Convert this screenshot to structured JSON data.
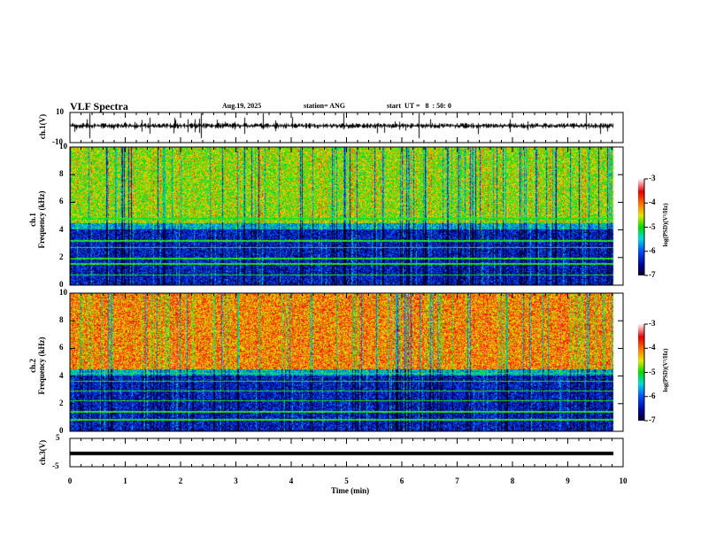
{
  "header": {
    "title": "VLF Spectra",
    "date": "Aug.19, 2025",
    "station": "station= ANG",
    "start": "start  UT =   8  : 50: 0"
  },
  "chart_data": {
    "type": "heatmap",
    "xlabel": "Time (min)",
    "xlim": [
      0,
      10
    ],
    "xticks": [
      "0",
      "1",
      "2",
      "3",
      "4",
      "5",
      "6",
      "7",
      "8",
      "9",
      "10"
    ],
    "data_end_min": 9.83,
    "panels": [
      {
        "name": "ch1-waveform",
        "ylabel": "ch.1(V)",
        "ylim": [
          -10,
          10
        ],
        "yticks": [
          "10",
          "-10"
        ]
      },
      {
        "name": "ch1-spectrogram",
        "ylabel": "ch.1\nFrequency (kHz)",
        "ylabel_ch": "ch.1",
        "ylabel_f": "Frequency (kHz)",
        "ylim": [
          0,
          10
        ],
        "yticks": [
          "0",
          "2",
          "4",
          "6",
          "8",
          "10"
        ]
      },
      {
        "name": "ch2-spectrogram",
        "ylabel_ch": "ch.2",
        "ylabel_f": "Frequency (kHz)",
        "ylim": [
          0,
          10
        ],
        "yticks": [
          "0",
          "2",
          "4",
          "6",
          "8",
          "10"
        ]
      },
      {
        "name": "ch3-waveform",
        "ylabel": "ch.3(V)",
        "ylim": [
          -5,
          5
        ],
        "yticks": [
          "5",
          "-5"
        ],
        "value": -1
      }
    ],
    "colorbar": {
      "label": "log(PSD)(V²/Hz)",
      "range": [
        -7,
        -3
      ],
      "ticks": [
        "-3",
        "-4",
        "-5",
        "-6",
        "-7"
      ]
    }
  }
}
